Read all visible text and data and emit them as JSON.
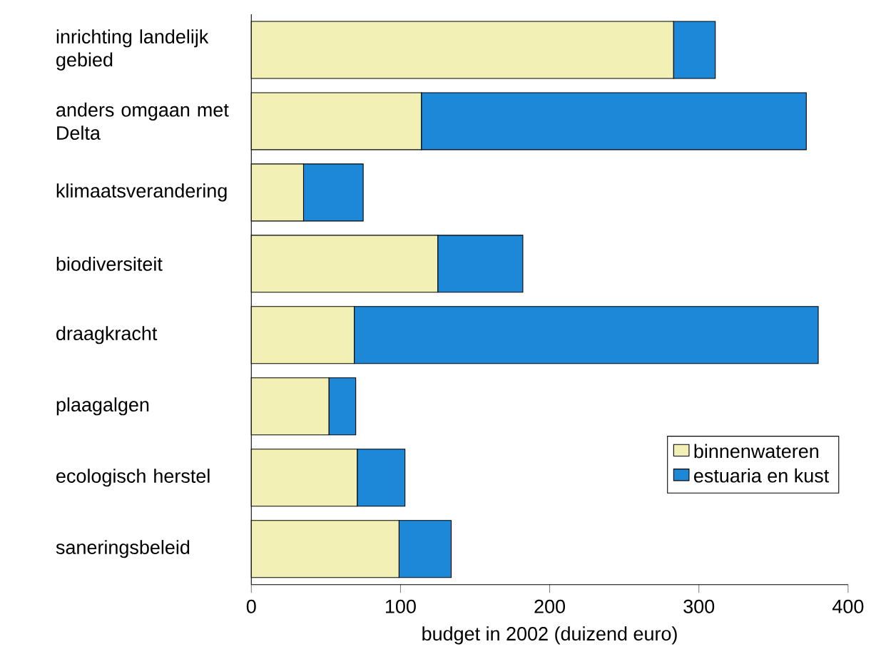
{
  "chart_data": {
    "type": "bar",
    "orientation": "horizontal",
    "stacked": true,
    "xlabel": "budget in 2002 (duizend euro)",
    "categories": [
      "inrichting landelijk gebied",
      "anders omgaan met Delta",
      "klimaatsverandering",
      "biodiversiteit",
      "draagkracht",
      "plaagalgen",
      "ecologisch herstel",
      "saneringsbeleid"
    ],
    "series": [
      {
        "name": "binnenwateren",
        "color": "#f2f0b4",
        "values": [
          283,
          114,
          35,
          125,
          69,
          52,
          71,
          99
        ]
      },
      {
        "name": "estuaria en kust",
        "color": "#1e88d8",
        "values": [
          28,
          258,
          40,
          57,
          311,
          18,
          32,
          35
        ]
      }
    ],
    "xlim": [
      0,
      400
    ],
    "xticks": [
      0,
      100,
      200,
      300,
      400
    ],
    "legend": "bottom right"
  }
}
